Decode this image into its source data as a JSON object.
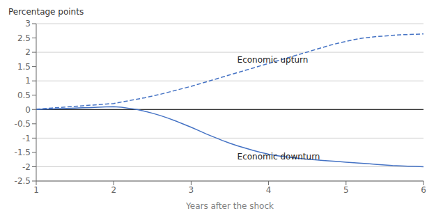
{
  "chart_data": {
    "type": "line",
    "xlabel": "Years after the shock",
    "ylabel": "Percentage points",
    "xlim": [
      1,
      6
    ],
    "ylim": [
      -2.5,
      3
    ],
    "xticks": [
      1,
      2,
      3,
      4,
      5,
      6
    ],
    "yticks": [
      -2.5,
      -2,
      -1.5,
      -1,
      -0.5,
      0,
      0.5,
      1,
      1.5,
      2,
      2.5,
      3
    ],
    "grid": true,
    "x": [
      1.0,
      1.1,
      1.2,
      1.3,
      1.4,
      1.5,
      1.6,
      1.7,
      1.8,
      1.9,
      2.0,
      2.1,
      2.2,
      2.3,
      2.4,
      2.5,
      2.6,
      2.7,
      2.8,
      2.9,
      3.0,
      3.1,
      3.2,
      3.3,
      3.4,
      3.5,
      3.6,
      3.7,
      3.8,
      3.9,
      4.0,
      4.1,
      4.2,
      4.3,
      4.4,
      4.5,
      4.6,
      4.7,
      4.8,
      4.9,
      5.0,
      5.1,
      5.2,
      5.3,
      5.4,
      5.5,
      5.6,
      5.7,
      5.8,
      5.9,
      6.0
    ],
    "series": [
      {
        "name": "Economic upturn",
        "color": "#4472C4",
        "line_style": "dashed",
        "values": [
          0.01,
          0.03,
          0.05,
          0.07,
          0.09,
          0.11,
          0.13,
          0.15,
          0.17,
          0.19,
          0.21,
          0.26,
          0.31,
          0.36,
          0.41,
          0.47,
          0.53,
          0.6,
          0.67,
          0.74,
          0.81,
          0.89,
          0.97,
          1.05,
          1.13,
          1.21,
          1.29,
          1.37,
          1.45,
          1.53,
          1.61,
          1.69,
          1.77,
          1.85,
          1.93,
          2.01,
          2.09,
          2.17,
          2.25,
          2.32,
          2.38,
          2.44,
          2.49,
          2.52,
          2.55,
          2.57,
          2.59,
          2.61,
          2.62,
          2.63,
          2.64
        ]
      },
      {
        "name": "Economic downturn",
        "color": "#4472C4",
        "line_style": "solid",
        "values": [
          0.0,
          0.01,
          0.02,
          0.03,
          0.04,
          0.05,
          0.06,
          0.07,
          0.08,
          0.09,
          0.1,
          0.08,
          0.04,
          0.0,
          -0.06,
          -0.13,
          -0.21,
          -0.3,
          -0.4,
          -0.51,
          -0.62,
          -0.74,
          -0.86,
          -0.97,
          -1.08,
          -1.18,
          -1.27,
          -1.35,
          -1.43,
          -1.5,
          -1.56,
          -1.61,
          -1.65,
          -1.68,
          -1.71,
          -1.74,
          -1.76,
          -1.78,
          -1.8,
          -1.82,
          -1.84,
          -1.86,
          -1.88,
          -1.9,
          -1.92,
          -1.94,
          -1.96,
          -1.97,
          -1.98,
          -1.99,
          -2.0
        ]
      }
    ],
    "annotations": [
      {
        "text": "Economic upturn",
        "x": 3.55,
        "y": 1.75
      },
      {
        "text": "Economic downturn",
        "x": 3.55,
        "y": -1.65
      }
    ]
  }
}
